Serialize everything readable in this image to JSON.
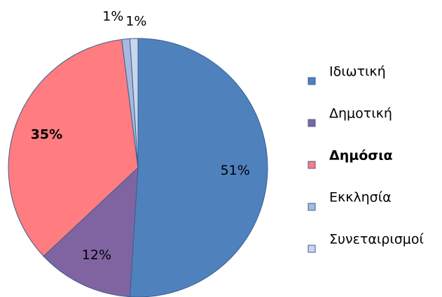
{
  "chart_data": {
    "type": "pie",
    "categories": [
      "Ιδιωτική",
      "Δημοτική",
      "Δημόσια",
      "Εκκλησία",
      "Συνεταιρισμοί"
    ],
    "values": [
      51,
      12,
      35,
      1,
      1
    ],
    "value_labels": [
      "51%",
      "12%",
      "35%",
      "1%",
      "1%"
    ],
    "colors": [
      "#4f81bd",
      "#8064a2",
      "#ff7c80",
      "#a7bade",
      "#c9d6ec"
    ],
    "bold": [
      false,
      false,
      true,
      false,
      false
    ],
    "legend": "right"
  }
}
